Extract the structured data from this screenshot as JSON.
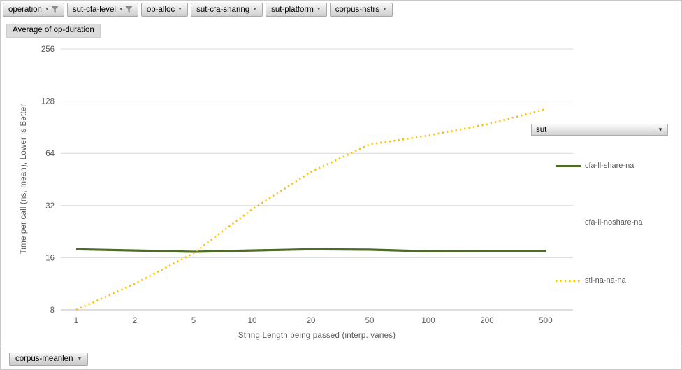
{
  "field_buttons": {
    "top": [
      {
        "label": "operation",
        "filtered": true
      },
      {
        "label": "sut-cfa-level",
        "filtered": true
      },
      {
        "label": "op-alloc",
        "filtered": false
      },
      {
        "label": "sut-cfa-sharing",
        "filtered": false
      },
      {
        "label": "sut-platform",
        "filtered": false
      },
      {
        "label": "corpus-nstrs",
        "filtered": false
      }
    ],
    "value_button": "Average of op-duration",
    "legend_button": "sut",
    "axis_button": "corpus-meanlen"
  },
  "chart_data": {
    "type": "line",
    "title": "Average of op-duration",
    "x_scale": "log",
    "y_scale": "log2",
    "categories": [
      "1",
      "2",
      "5",
      "10",
      "20",
      "50",
      "100",
      "200",
      "500"
    ],
    "series": [
      {
        "name": "cfa-ll-share-na",
        "style": "solid",
        "color": "#4E6B28",
        "values": [
          17.9,
          17.6,
          17.3,
          17.6,
          17.9,
          17.8,
          17.4,
          17.5,
          17.5
        ]
      },
      {
        "name": "cfa-ll-noshare-na",
        "style": "none",
        "color": "",
        "values": []
      },
      {
        "name": "stl-na-na-na",
        "style": "dotted",
        "color": "#FFC000",
        "values": [
          8,
          11.3,
          17,
          30.5,
          50,
          72,
          81,
          94,
          115
        ]
      }
    ],
    "xlabel": "String Length being passed (interp. varies)",
    "ylabel": "Time per call (ns, mean), Lower is Better",
    "y_ticks": [
      8,
      16,
      32,
      64,
      128,
      256
    ],
    "ylim": [
      8,
      256
    ],
    "grid": "horizontal",
    "legend_position": "right"
  },
  "colors": {
    "gridline": "#d9d9d9",
    "axis_line": "#bfbfbf",
    "tick_text": "#595959",
    "legend_text": "#595959"
  }
}
